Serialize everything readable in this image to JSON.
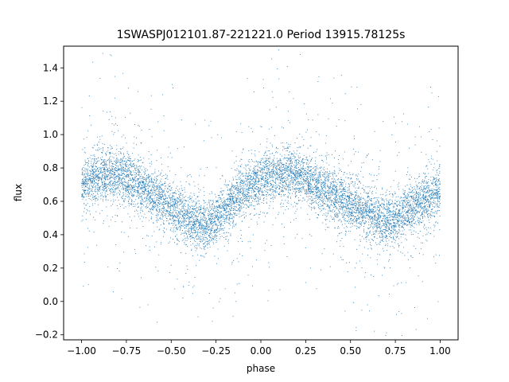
{
  "chart_data": {
    "type": "scatter",
    "title": "1SWASPJ012101.87-221221.0 Period 13915.78125s",
    "xlabel": "phase",
    "ylabel": "flux",
    "xlim": [
      -1.1,
      1.1
    ],
    "ylim": [
      -0.23,
      1.53
    ],
    "xticks": [
      {
        "value": -1.0,
        "label": "−1.00"
      },
      {
        "value": -0.75,
        "label": "−0.75"
      },
      {
        "value": -0.5,
        "label": "−0.50"
      },
      {
        "value": -0.25,
        "label": "−0.25"
      },
      {
        "value": 0.0,
        "label": "0.00"
      },
      {
        "value": 0.25,
        "label": "0.25"
      },
      {
        "value": 0.5,
        "label": "0.50"
      },
      {
        "value": 0.75,
        "label": "0.75"
      },
      {
        "value": 1.0,
        "label": "1.00"
      }
    ],
    "yticks": [
      {
        "value": -0.2,
        "label": "−0.2"
      },
      {
        "value": 0.0,
        "label": "0.0"
      },
      {
        "value": 0.2,
        "label": "0.2"
      },
      {
        "value": 0.4,
        "label": "0.4"
      },
      {
        "value": 0.6,
        "label": "0.6"
      },
      {
        "value": 0.8,
        "label": "0.8"
      },
      {
        "value": 1.0,
        "label": "1.0"
      },
      {
        "value": 1.2,
        "label": "1.2"
      },
      {
        "value": 1.4,
        "label": "1.4"
      }
    ],
    "grid": false,
    "marker_color": "#1f77b4",
    "series": [
      {
        "x": [
          -1.0,
          -0.95,
          -0.9,
          -0.85,
          -0.8,
          -0.75,
          -0.7,
          -0.65,
          -0.6,
          -0.55,
          -0.5,
          -0.45,
          -0.4,
          -0.35,
          -0.3,
          -0.25,
          -0.2,
          -0.15,
          -0.1,
          -0.05,
          0.0,
          0.05,
          0.1,
          0.15,
          0.2,
          0.25,
          0.3,
          0.35,
          0.4,
          0.45,
          0.5,
          0.55,
          0.6,
          0.65,
          0.7,
          0.75,
          0.8,
          0.85,
          0.9,
          0.95,
          1.0
        ],
        "y": [
          0.69,
          0.73,
          0.75,
          0.76,
          0.76,
          0.74,
          0.71,
          0.68,
          0.64,
          0.6,
          0.56,
          0.52,
          0.49,
          0.47,
          0.46,
          0.49,
          0.55,
          0.61,
          0.66,
          0.7,
          0.73,
          0.75,
          0.76,
          0.76,
          0.75,
          0.73,
          0.7,
          0.67,
          0.64,
          0.61,
          0.58,
          0.55,
          0.52,
          0.49,
          0.48,
          0.5,
          0.53,
          0.56,
          0.6,
          0.63,
          0.67
        ]
      }
    ]
  }
}
